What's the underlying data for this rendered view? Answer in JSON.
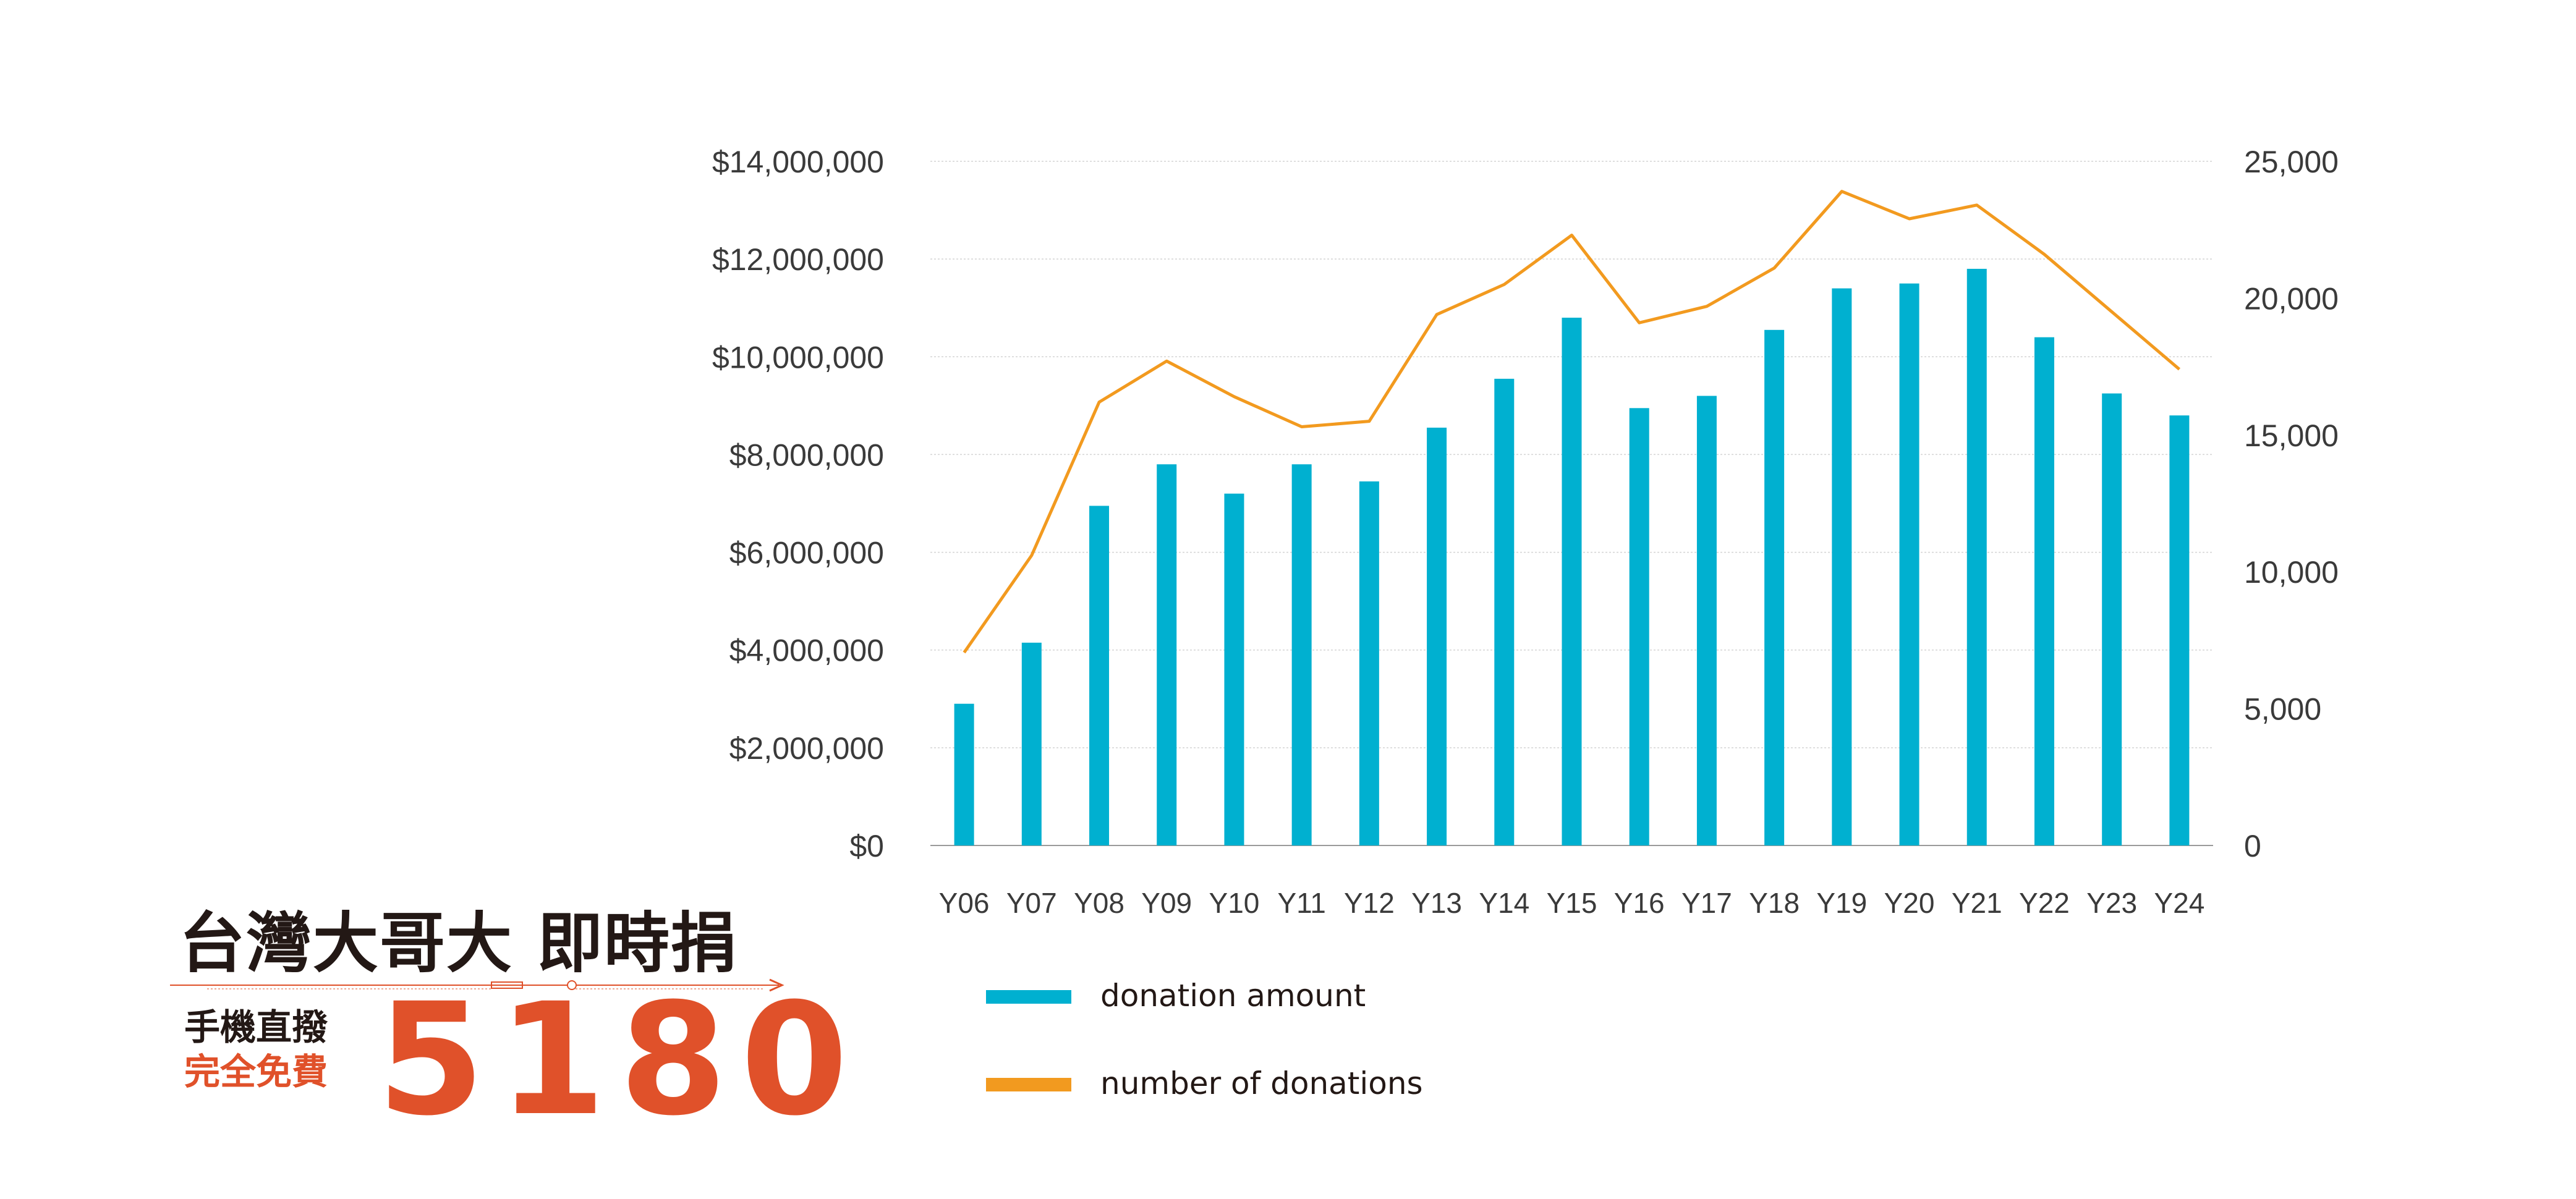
{
  "chart_data": {
    "type": "bar+line",
    "categories": [
      "Y06",
      "Y07",
      "Y08",
      "Y09",
      "Y10",
      "Y11",
      "Y12",
      "Y13",
      "Y14",
      "Y15",
      "Y16",
      "Y17",
      "Y18",
      "Y19",
      "Y20",
      "Y21",
      "Y22",
      "Y23",
      "Y24"
    ],
    "series": [
      {
        "name": "donation amount",
        "type": "bar",
        "axis": "left",
        "color": "#00b0d0",
        "values": [
          2900000,
          4150000,
          6950000,
          7800000,
          7200000,
          7800000,
          7450000,
          8550000,
          9550000,
          10800000,
          8950000,
          9200000,
          10550000,
          11400000,
          11500000,
          11800000,
          10400000,
          9250000,
          8800000
        ]
      },
      {
        "name": "number of donations",
        "type": "line",
        "axis": "right",
        "color": "#f29a1f",
        "values": [
          7050,
          10600,
          16200,
          17700,
          16400,
          15300,
          15500,
          19400,
          20500,
          22300,
          19100,
          19700,
          21100,
          23900,
          22900,
          23400,
          21600,
          19500,
          17400
        ]
      }
    ],
    "y_left": {
      "min": 0,
      "max": 14000000,
      "ticks": [
        0,
        2000000,
        4000000,
        6000000,
        8000000,
        10000000,
        12000000,
        14000000
      ],
      "tick_labels": [
        "$0",
        "$2,000,000",
        "$4,000,000",
        "$6,000,000",
        "$8,000,000",
        "$10,000,000",
        "$12,000,000",
        "$14,000,000"
      ]
    },
    "y_right": {
      "min": 0,
      "max": 25000,
      "ticks": [
        0,
        5000,
        10000,
        15000,
        20000,
        25000
      ],
      "tick_labels": [
        "0",
        "5,000",
        "10,000",
        "15,000",
        "20,000",
        "25,000"
      ]
    },
    "grid": true,
    "legend_position": "bottom"
  },
  "legend": {
    "bar_label": "donation amount",
    "line_label": "number of donations",
    "bar_color": "#00b0d0",
    "line_color": "#f29a1f"
  },
  "logo": {
    "title": "台灣大哥大 即時捐",
    "line1": "手機直撥",
    "line2": "完全免費",
    "number": "5180",
    "accent_color": "#e0512a"
  }
}
